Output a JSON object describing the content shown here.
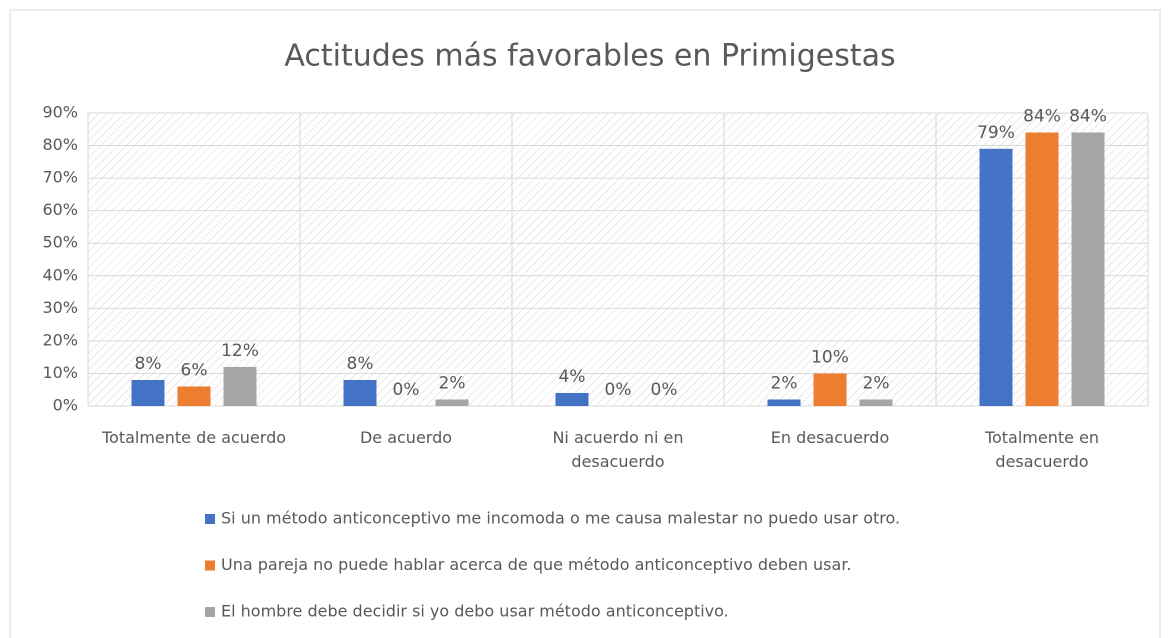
{
  "chart_data": {
    "type": "bar",
    "title": "Actitudes más favorables en Primigestas",
    "categories": [
      "Totalmente de acuerdo",
      "De acuerdo",
      "Ni acuerdo ni en desacuerdo",
      "En desacuerdo",
      "Totalmente en desacuerdo"
    ],
    "series": [
      {
        "name": "Si un método anticonceptivo me incomoda o me causa malestar no puedo usar otro.",
        "color": "#4472c4",
        "values": [
          8,
          8,
          4,
          2,
          79
        ],
        "value_labels": [
          "8%",
          "8%",
          "4%",
          "2%",
          "79%"
        ]
      },
      {
        "name": "Una pareja no puede hablar acerca de que método anticonceptivo deben usar.",
        "color": "#ed7d31",
        "values": [
          6,
          0,
          0,
          10,
          84
        ],
        "value_labels": [
          "6%",
          "0%",
          "0%",
          "10%",
          "84%"
        ]
      },
      {
        "name": "El hombre debe decidir si yo debo usar método anticonceptivo.",
        "color": "#a5a5a5",
        "values": [
          12,
          2,
          0,
          2,
          84
        ],
        "value_labels": [
          "12%",
          "2%",
          "0%",
          "2%",
          "84%"
        ]
      }
    ],
    "ylim": [
      0,
      90
    ],
    "yticks": [
      {
        "value": 0,
        "label": "0%"
      },
      {
        "value": 10,
        "label": "10%"
      },
      {
        "value": 20,
        "label": "20%"
      },
      {
        "value": 30,
        "label": "30%"
      },
      {
        "value": 40,
        "label": "40%"
      },
      {
        "value": 50,
        "label": "50%"
      },
      {
        "value": 60,
        "label": "60%"
      },
      {
        "value": 70,
        "label": "70%"
      },
      {
        "value": 80,
        "label": "80%"
      },
      {
        "value": 90,
        "label": "90%"
      }
    ],
    "grid": true
  }
}
